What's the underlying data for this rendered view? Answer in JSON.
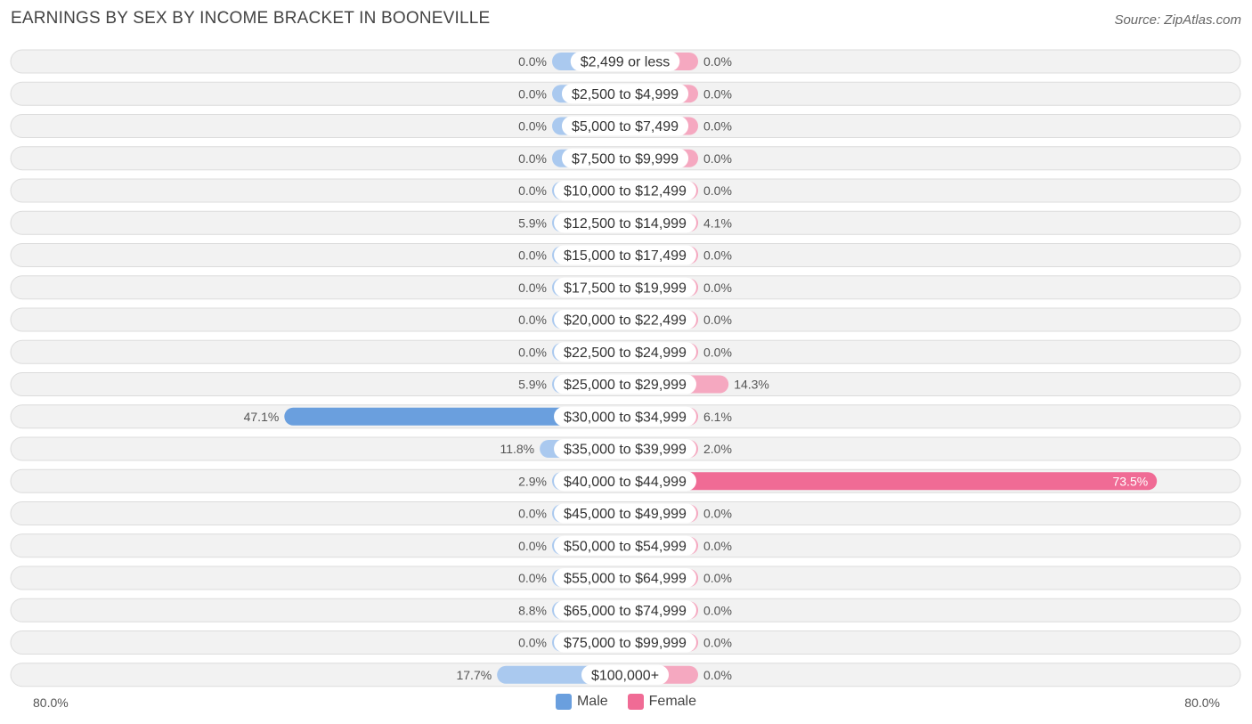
{
  "header": {
    "title": "EARNINGS BY SEX BY INCOME BRACKET IN BOONEVILLE",
    "source": "Source: ZipAtlas.com"
  },
  "axis": {
    "left_label": "80.0%",
    "right_label": "80.0%",
    "max": 80
  },
  "legend": {
    "male_label": "Male",
    "female_label": "Female"
  },
  "colors": {
    "male": "#aac9ef",
    "male_strong": "#6a9fde",
    "female": "#f5a8c0",
    "female_strong": "#f06b95"
  },
  "chart_data": {
    "type": "bar",
    "title": "EARNINGS BY SEX BY INCOME BRACKET IN BOONEVILLE",
    "categories": [
      "$2,499 or less",
      "$2,500 to $4,999",
      "$5,000 to $7,499",
      "$7,500 to $9,999",
      "$10,000 to $12,499",
      "$12,500 to $14,999",
      "$15,000 to $17,499",
      "$17,500 to $19,999",
      "$20,000 to $22,499",
      "$22,500 to $24,999",
      "$25,000 to $29,999",
      "$30,000 to $34,999",
      "$35,000 to $39,999",
      "$40,000 to $44,999",
      "$45,000 to $49,999",
      "$50,000 to $54,999",
      "$55,000 to $64,999",
      "$65,000 to $74,999",
      "$75,000 to $99,999",
      "$100,000+"
    ],
    "series": [
      {
        "name": "Male",
        "values": [
          0.0,
          0.0,
          0.0,
          0.0,
          0.0,
          5.9,
          0.0,
          0.0,
          0.0,
          0.0,
          5.9,
          47.1,
          11.8,
          2.9,
          0.0,
          0.0,
          0.0,
          8.8,
          0.0,
          17.7
        ],
        "labels": [
          "0.0%",
          "0.0%",
          "0.0%",
          "0.0%",
          "0.0%",
          "5.9%",
          "0.0%",
          "0.0%",
          "0.0%",
          "0.0%",
          "5.9%",
          "47.1%",
          "11.8%",
          "2.9%",
          "0.0%",
          "0.0%",
          "0.0%",
          "8.8%",
          "0.0%",
          "17.7%"
        ]
      },
      {
        "name": "Female",
        "values": [
          0.0,
          0.0,
          0.0,
          0.0,
          0.0,
          4.1,
          0.0,
          0.0,
          0.0,
          0.0,
          14.3,
          6.1,
          2.0,
          73.5,
          0.0,
          0.0,
          0.0,
          0.0,
          0.0,
          0.0
        ],
        "labels": [
          "0.0%",
          "0.0%",
          "0.0%",
          "0.0%",
          "0.0%",
          "4.1%",
          "0.0%",
          "0.0%",
          "0.0%",
          "0.0%",
          "14.3%",
          "6.1%",
          "2.0%",
          "73.5%",
          "0.0%",
          "0.0%",
          "0.0%",
          "0.0%",
          "0.0%",
          "0.0%"
        ]
      }
    ],
    "xlim": [
      -80,
      80
    ],
    "legend_position": "bottom-center"
  }
}
